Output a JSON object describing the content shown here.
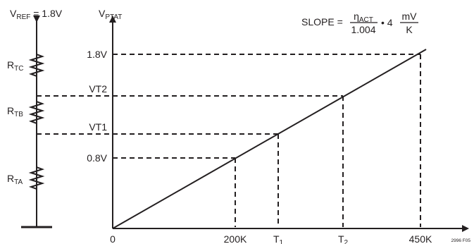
{
  "divider": {
    "vref_prefix": "V",
    "vref_sub": "REF",
    "vref_value": " = 1.8V",
    "resistors": [
      {
        "main": "R",
        "sub": "TC"
      },
      {
        "main": "R",
        "sub": "TB"
      },
      {
        "main": "R",
        "sub": "TA"
      }
    ]
  },
  "graph": {
    "y_axis_main": "V",
    "y_axis_sub": "PTAT",
    "y_ticks": [
      "1.8V",
      "VT2",
      "VT1",
      "0.8V"
    ],
    "origin": "0",
    "x_ticks": [
      {
        "main": "200K",
        "sub": ""
      },
      {
        "main": "T",
        "sub": "1"
      },
      {
        "main": "T",
        "sub": "2"
      },
      {
        "main": "450K",
        "sub": ""
      }
    ],
    "slope": {
      "lhs": "SLOPE =",
      "num_eta": "η",
      "num_sub": "ACT",
      "den": "1.004",
      "mult": "• 4",
      "unit_num": "mV",
      "unit_den": "K"
    },
    "figure_id": "2996 F05"
  }
}
